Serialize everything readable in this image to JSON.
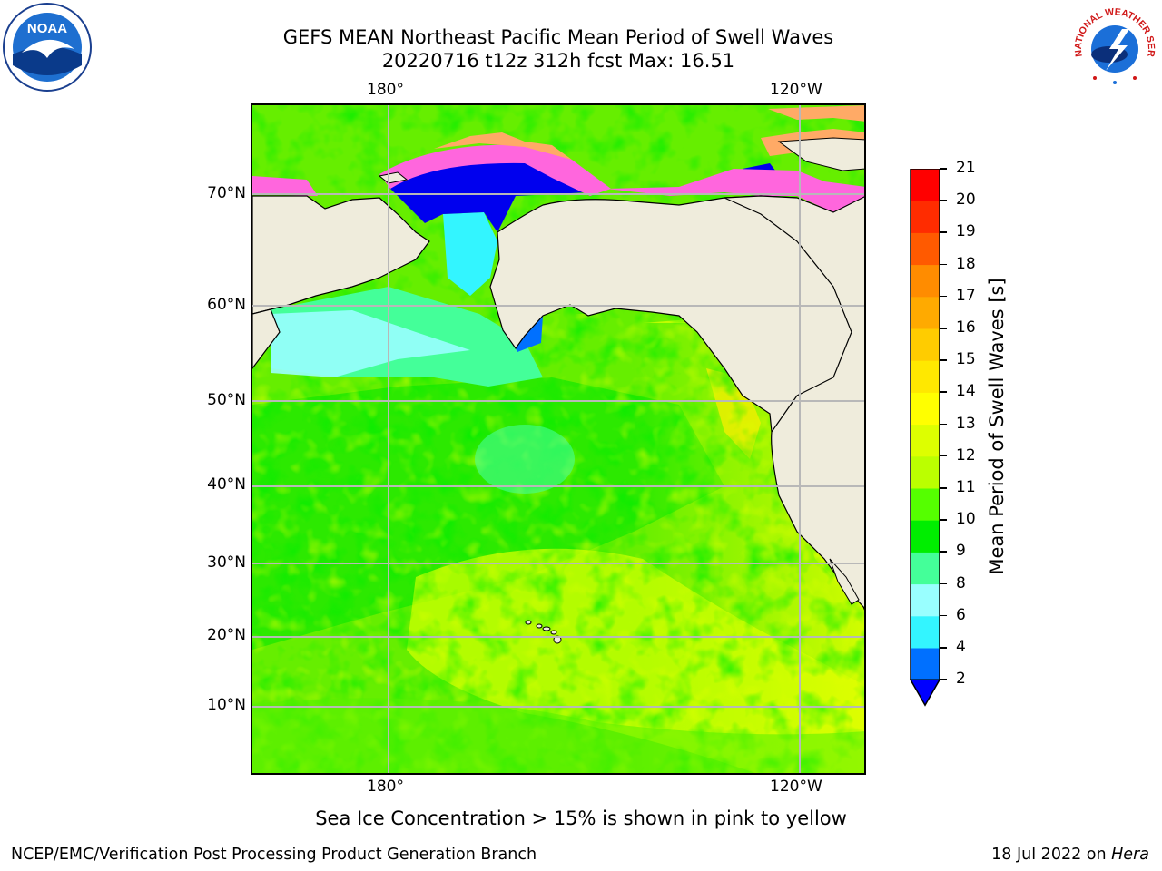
{
  "title": {
    "line1": "GEFS MEAN Northeast Pacific Mean Period of Swell Waves",
    "line2": "20220716 t12z 312h fcst   Max: 16.51"
  },
  "map": {
    "lon_labels_top": [
      "180°",
      "120°W"
    ],
    "lon_labels_bottom": [
      "180°",
      "120°W"
    ],
    "lat_labels": [
      "70°N",
      "60°N",
      "50°N",
      "40°N",
      "30°N",
      "20°N",
      "10°N"
    ],
    "colors": {
      "land": "#efecdc",
      "coast": "#000000",
      "grid": "#b8b8b8",
      "ice_pink": "#ff66dd",
      "ice_orange": "#ffaa66"
    }
  },
  "colorbar": {
    "label": "Mean Period of Swell Waves [s]",
    "ticks": [
      "2",
      "4",
      "6",
      "8",
      "9",
      "10",
      "11",
      "12",
      "13",
      "14",
      "15",
      "16",
      "17",
      "18",
      "19",
      "20",
      "21"
    ],
    "colors": [
      "#0070ff",
      "#00e5ff",
      "#33f5ff",
      "#99ffff",
      "#44ff99",
      "#00ee00",
      "#55ff00",
      "#bbff00",
      "#ddff00",
      "#ffff00",
      "#ffe800",
      "#ffcc00",
      "#ffaa00",
      "#ff8c00",
      "#ff5a00",
      "#ff2c00",
      "#ff0000"
    ],
    "extend_color": "#0000ff"
  },
  "annotation": "Sea Ice Concentration > 15% is shown in pink to yellow",
  "footer": {
    "left": "NCEP/EMC/Verification Post Processing Product Generation Branch",
    "date": "18 Jul 2022 on ",
    "machine": "Hera"
  },
  "logos": {
    "noaa": "NOAA",
    "nws": "NATIONAL WEATHER SERVICE"
  }
}
